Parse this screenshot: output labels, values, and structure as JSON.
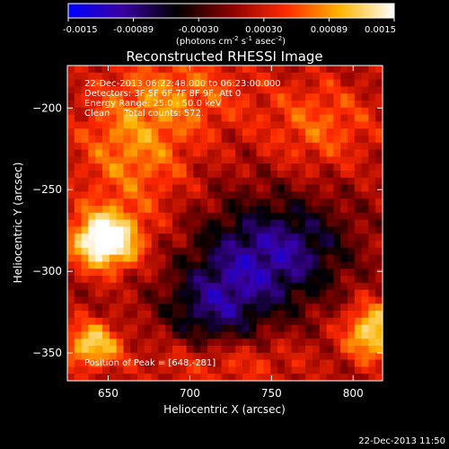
{
  "chart_data": {
    "type": "heatmap",
    "title": "Reconstructed RHESSI Image",
    "xlabel": "Heliocentric X (arcsec)",
    "ylabel": "Heliocentric Y (arcsec)",
    "xlim": [
      625,
      818
    ],
    "ylim": [
      -367,
      -174
    ],
    "x_ticks": [
      650,
      700,
      750,
      800
    ],
    "y_ticks": [
      -200,
      -250,
      -300,
      -350
    ],
    "colorbar": {
      "ticks": [
        "-0.0015",
        "-0.00089",
        "-0.00030",
        "0.00030",
        "0.00089",
        "0.0015"
      ],
      "range": [
        -0.0015,
        0.0015
      ],
      "label_main": "(photons cm",
      "label_exp1": "-2",
      "label_mid1": " s",
      "label_exp2": "-1",
      "label_mid2": " asec",
      "label_exp3": "-2",
      "label_end": ")",
      "colors": [
        "#0000ff",
        "#3a00a0",
        "#000000",
        "#8a0000",
        "#ff2a00",
        "#ffb400",
        "#ffffff"
      ]
    },
    "info_lines": [
      "22-Dec-2013 06:22:48.000 to 06:23:00.000",
      "Detectors: 3F 5F 6F 7F 8F 9F, Att 0",
      "Energy Range: 25.0 - 50.0 keV",
      "Clean     Total counts: 572."
    ],
    "peak_label": "Position of Peak = [648,-281]",
    "peak": [
      648,
      -281
    ],
    "sources": [
      {
        "x": 648,
        "y": -281,
        "amp": 0.00175,
        "sx": 14,
        "sy": 12
      },
      {
        "x": 640,
        "y": -345,
        "amp": 0.0011,
        "sx": 12,
        "sy": 10
      },
      {
        "x": 812,
        "y": -337,
        "amp": 0.0012,
        "sx": 12,
        "sy": 12
      },
      {
        "x": 665,
        "y": -225,
        "amp": 0.0007,
        "sx": 25,
        "sy": 30
      },
      {
        "x": 780,
        "y": -210,
        "amp": 0.00055,
        "sx": 25,
        "sy": 20
      },
      {
        "x": 700,
        "y": -190,
        "amp": 0.0005,
        "sx": 28,
        "sy": 18
      },
      {
        "x": 720,
        "y": -355,
        "amp": 0.00045,
        "sx": 35,
        "sy": 12
      },
      {
        "x": 735,
        "y": -295,
        "amp": -0.0009,
        "sx": 25,
        "sy": 25
      },
      {
        "x": 770,
        "y": -285,
        "amp": -0.0006,
        "sx": 22,
        "sy": 22
      },
      {
        "x": 712,
        "y": -325,
        "amp": -0.0007,
        "sx": 20,
        "sy": 18
      }
    ]
  },
  "footer": {
    "timestamp": "22-Dec-2013 11:50"
  }
}
